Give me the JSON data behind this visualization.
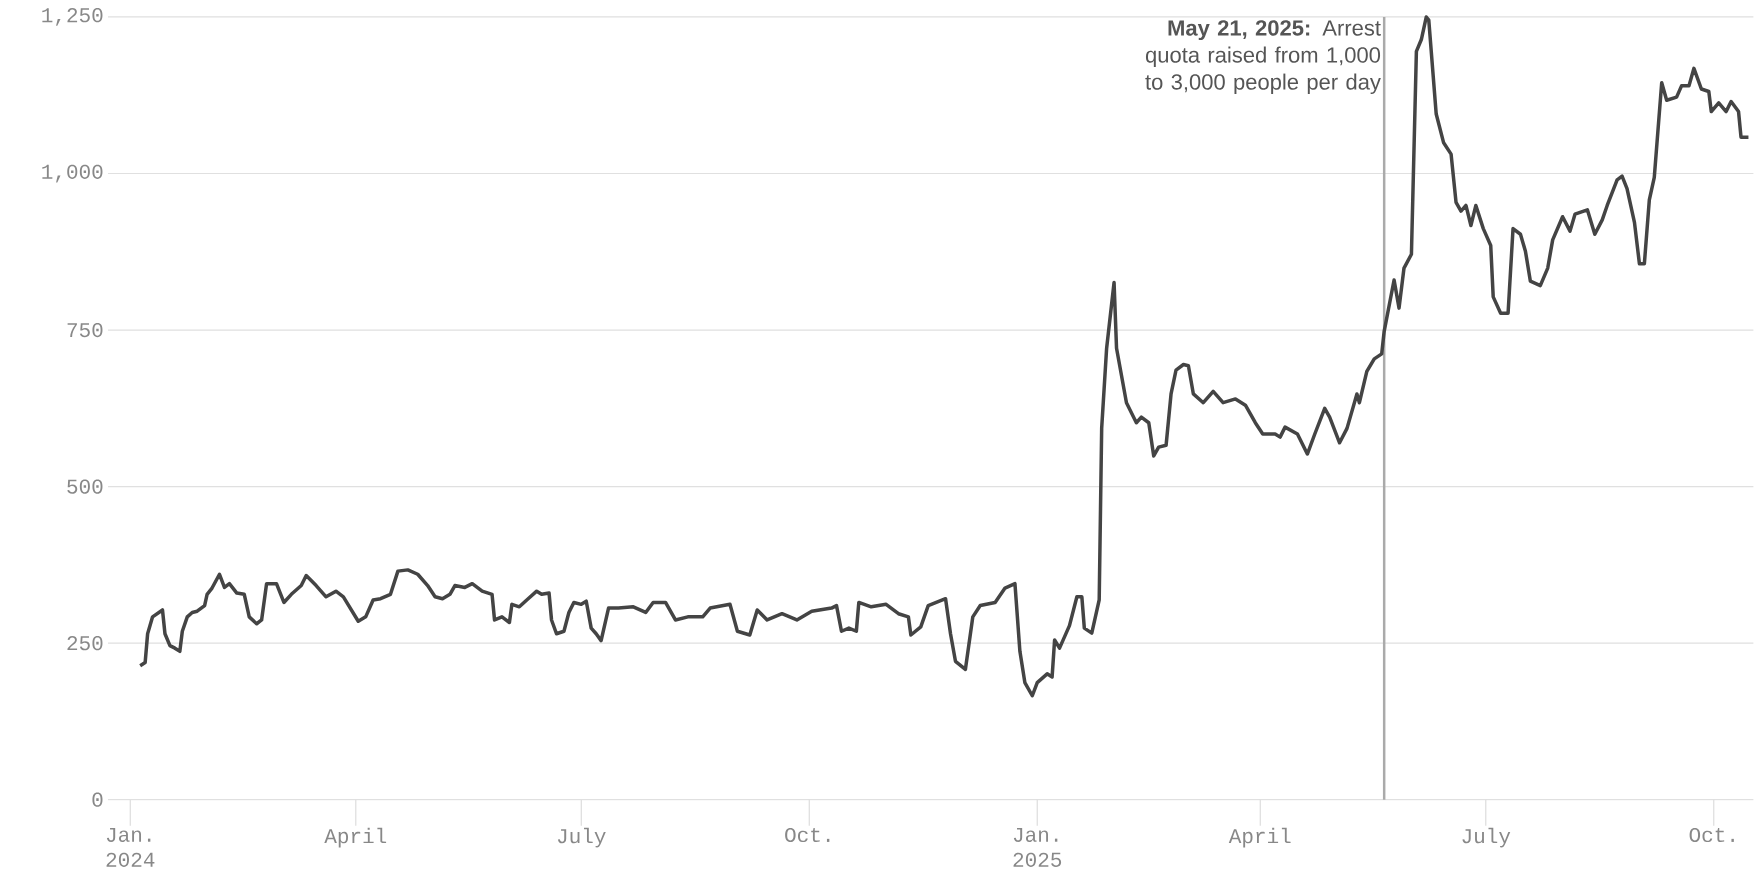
{
  "chart_data": {
    "type": "line",
    "color": "#444444",
    "grid": "y",
    "xlim": [
      "2023-12-23",
      "2025-10-17"
    ],
    "ylim": [
      0,
      1250
    ],
    "xticks": [
      {
        "value": "2024-01-01",
        "label": "Jan. 2024"
      },
      {
        "value": "2024-04-01",
        "label": "April"
      },
      {
        "value": "2024-07-01",
        "label": "July"
      },
      {
        "value": "2024-10-01",
        "label": "Oct."
      },
      {
        "value": "2025-01-01",
        "label": "Jan. 2025"
      },
      {
        "value": "2025-04-01",
        "label": "April"
      },
      {
        "value": "2025-07-01",
        "label": "July"
      },
      {
        "value": "2025-10-01",
        "label": "Oct."
      }
    ],
    "yticks": [
      0,
      250,
      500,
      750,
      {
        "value": 1000,
        "label": "1,000"
      },
      {
        "value": 1250,
        "label": "1,250"
      }
    ],
    "ref_lines": [
      {
        "axis": "x",
        "value": "2025-05-21",
        "label": "**May 21, 2025:** Arrest quota raised from 1,000 to 3,000 people per day",
        "color": "#aaaaaa"
      }
    ],
    "x": [
      "2024-01-05",
      "2024-01-07",
      "2024-01-08",
      "2024-01-10",
      "2024-01-14",
      "2024-01-15",
      "2024-01-17",
      "2024-01-19",
      "2024-01-21",
      "2024-01-22",
      "2024-01-24",
      "2024-01-26",
      "2024-01-28",
      "2024-01-31",
      "2024-02-01",
      "2024-02-03",
      "2024-02-06",
      "2024-02-08",
      "2024-02-10",
      "2024-02-13",
      "2024-02-16",
      "2024-02-18",
      "2024-02-21",
      "2024-02-23",
      "2024-02-25",
      "2024-02-29",
      "2024-03-03",
      "2024-03-06",
      "2024-03-10",
      "2024-03-12",
      "2024-03-16",
      "2024-03-20",
      "2024-03-24",
      "2024-03-27",
      "2024-04-02",
      "2024-04-05",
      "2024-04-08",
      "2024-04-11",
      "2024-04-15",
      "2024-04-18",
      "2024-04-22",
      "2024-04-26",
      "2024-04-30",
      "2024-05-03",
      "2024-05-06",
      "2024-05-09",
      "2024-05-11",
      "2024-05-15",
      "2024-05-18",
      "2024-05-22",
      "2024-05-26",
      "2024-05-27",
      "2024-05-30",
      "2024-06-02",
      "2024-06-03",
      "2024-06-06",
      "2024-06-09",
      "2024-06-13",
      "2024-06-15",
      "2024-06-18",
      "2024-06-19",
      "2024-06-21",
      "2024-06-24",
      "2024-06-26",
      "2024-06-28",
      "2024-07-01",
      "2024-07-03",
      "2024-07-05",
      "2024-07-07",
      "2024-07-09",
      "2024-07-12",
      "2024-07-16",
      "2024-07-22",
      "2024-07-27",
      "2024-07-30",
      "2024-08-04",
      "2024-08-08",
      "2024-08-13",
      "2024-08-19",
      "2024-08-22",
      "2024-08-30",
      "2024-09-02",
      "2024-09-07",
      "2024-09-10",
      "2024-09-14",
      "2024-09-20",
      "2024-09-26",
      "2024-10-02",
      "2024-10-10",
      "2024-10-12",
      "2024-10-14",
      "2024-10-17",
      "2024-10-20",
      "2024-10-21",
      "2024-10-26",
      "2024-11-01",
      "2024-11-06",
      "2024-11-10",
      "2024-11-11",
      "2024-11-15",
      "2024-11-18",
      "2024-11-25",
      "2024-11-27",
      "2024-11-29",
      "2024-12-03",
      "2024-12-06",
      "2024-12-09",
      "2024-12-15",
      "2024-12-19",
      "2024-12-23",
      "2024-12-25",
      "2024-12-27",
      "2024-12-30",
      "2025-01-01",
      "2025-01-05",
      "2025-01-07",
      "2025-01-08",
      "2025-01-10",
      "2025-01-14",
      "2025-01-17",
      "2025-01-19",
      "2025-01-20",
      "2025-01-23",
      "2025-01-26",
      "2025-01-27",
      "2025-01-29",
      "2025-02-01",
      "2025-02-02",
      "2025-02-06",
      "2025-02-10",
      "2025-02-12",
      "2025-02-15",
      "2025-02-17",
      "2025-02-19",
      "2025-02-22",
      "2025-02-24",
      "2025-02-26",
      "2025-03-01",
      "2025-03-03",
      "2025-03-05",
      "2025-03-09",
      "2025-03-13",
      "2025-03-17",
      "2025-03-22",
      "2025-03-26",
      "2025-03-30",
      "2025-04-02",
      "2025-04-07",
      "2025-04-09",
      "2025-04-11",
      "2025-04-16",
      "2025-04-20",
      "2025-04-23",
      "2025-04-27",
      "2025-04-29",
      "2025-05-03",
      "2025-05-06",
      "2025-05-10",
      "2025-05-11",
      "2025-05-14",
      "2025-05-17",
      "2025-05-20",
      "2025-05-21",
      "2025-05-25",
      "2025-05-27",
      "2025-05-29",
      "2025-06-01",
      "2025-06-03",
      "2025-06-05",
      "2025-06-07",
      "2025-06-08",
      "2025-06-11",
      "2025-06-14",
      "2025-06-17",
      "2025-06-19",
      "2025-06-21",
      "2025-06-23",
      "2025-06-25",
      "2025-06-27",
      "2025-06-30",
      "2025-07-03",
      "2025-07-04",
      "2025-07-07",
      "2025-07-10",
      "2025-07-12",
      "2025-07-15",
      "2025-07-17",
      "2025-07-19",
      "2025-07-23",
      "2025-07-26",
      "2025-07-28",
      "2025-08-01",
      "2025-08-04",
      "2025-08-06",
      "2025-08-11",
      "2025-08-14",
      "2025-08-17",
      "2025-08-19",
      "2025-08-23",
      "2025-08-25",
      "2025-08-27",
      "2025-08-30",
      "2025-09-01",
      "2025-09-03",
      "2025-09-05",
      "2025-09-07",
      "2025-09-10",
      "2025-09-12",
      "2025-09-16",
      "2025-09-18",
      "2025-09-21",
      "2025-09-23",
      "2025-09-26",
      "2025-09-29",
      "2025-09-30",
      "2025-10-03",
      "2025-10-06",
      "2025-10-08",
      "2025-10-11",
      "2025-10-12",
      "2025-10-15"
    ],
    "values": [
      214,
      219,
      265,
      292,
      303,
      265,
      246,
      242,
      237,
      269,
      292,
      299,
      301,
      310,
      328,
      338,
      360,
      339,
      345,
      330,
      328,
      292,
      281,
      287,
      345,
      345,
      315,
      328,
      342,
      358,
      342,
      324,
      333,
      324,
      285,
      292,
      319,
      321,
      328,
      365,
      367,
      360,
      342,
      324,
      321,
      328,
      342,
      339,
      345,
      333,
      328,
      287,
      292,
      283,
      312,
      308,
      319,
      333,
      328,
      330,
      287,
      265,
      269,
      299,
      315,
      312,
      317,
      274,
      265,
      254,
      306,
      306,
      308,
      299,
      315,
      315,
      287,
      292,
      292,
      306,
      312,
      269,
      263,
      303,
      287,
      297,
      287,
      301,
      306,
      310,
      269,
      274,
      269,
      315,
      308,
      312,
      297,
      292,
      263,
      276,
      310,
      321,
      265,
      221,
      208,
      292,
      310,
      315,
      338,
      345,
      237,
      187,
      166,
      187,
      201,
      196,
      255,
      242,
      278,
      324,
      324,
      274,
      266,
      319,
      593,
      721,
      826,
      721,
      634,
      602,
      611,
      602,
      549,
      563,
      566,
      648,
      686,
      695,
      693,
      648,
      634,
      652,
      634,
      640,
      630,
      602,
      584,
      584,
      579,
      595,
      584,
      552,
      584,
      625,
      611,
      570,
      593,
      648,
      634,
      684,
      704,
      712,
      748,
      830,
      785,
      849,
      871,
      1195,
      1214,
      1250,
      1245,
      1095,
      1049,
      1031,
      954,
      940,
      949,
      917,
      949,
      912,
      885,
      803,
      777,
      777,
      912,
      903,
      876,
      828,
      821,
      849,
      894,
      931,
      908,
      935,
      942,
      903,
      926,
      949,
      990,
      996,
      976,
      922,
      856,
      856,
      958,
      994,
      1145,
      1117,
      1122,
      1140,
      1140,
      1168,
      1135,
      1131,
      1099,
      1113,
      1099,
      1115,
      1099,
      1058,
      1058
    ]
  }
}
